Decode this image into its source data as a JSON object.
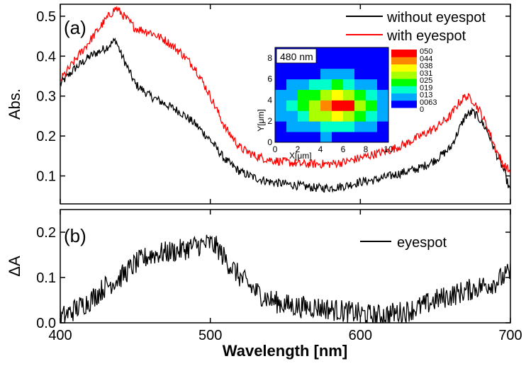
{
  "chart_data": [
    {
      "panel": "(a)",
      "type": "line",
      "xlabel": "Wavelength [nm]",
      "ylabel": "Abs.",
      "xlim": [
        400,
        700
      ],
      "ylim": [
        0.03,
        0.53
      ],
      "xticks": [
        400,
        500,
        600,
        700
      ],
      "yticks": [
        0.1,
        0.2,
        0.3,
        0.4,
        0.5
      ],
      "ytick_labels": [
        "0.1",
        "0.2",
        "0.3",
        "0.4",
        "0.5"
      ],
      "legend_position": "top-right",
      "series": [
        {
          "name": "without eyespot",
          "color": "#000000",
          "x": [
            400,
            410,
            420,
            430,
            437,
            440,
            445,
            450,
            460,
            470,
            480,
            490,
            500,
            510,
            520,
            530,
            540,
            550,
            560,
            570,
            580,
            590,
            600,
            610,
            620,
            630,
            640,
            650,
            660,
            665,
            670,
            675,
            680,
            685,
            690,
            695,
            700
          ],
          "y": [
            0.33,
            0.37,
            0.4,
            0.42,
            0.44,
            0.41,
            0.37,
            0.33,
            0.3,
            0.28,
            0.26,
            0.23,
            0.19,
            0.14,
            0.11,
            0.095,
            0.085,
            0.08,
            0.075,
            0.07,
            0.07,
            0.075,
            0.085,
            0.09,
            0.1,
            0.11,
            0.12,
            0.14,
            0.17,
            0.21,
            0.25,
            0.26,
            0.24,
            0.21,
            0.16,
            0.12,
            0.06
          ]
        },
        {
          "name": "with eyespot",
          "color": "#ff0000",
          "x": [
            400,
            410,
            420,
            430,
            437,
            440,
            445,
            450,
            460,
            470,
            480,
            490,
            500,
            510,
            520,
            530,
            540,
            550,
            560,
            570,
            580,
            590,
            600,
            610,
            620,
            630,
            640,
            650,
            660,
            665,
            670,
            675,
            680,
            685,
            690,
            695,
            700
          ],
          "y": [
            0.34,
            0.39,
            0.44,
            0.49,
            0.52,
            0.51,
            0.49,
            0.47,
            0.46,
            0.44,
            0.41,
            0.37,
            0.3,
            0.22,
            0.17,
            0.15,
            0.14,
            0.135,
            0.13,
            0.13,
            0.13,
            0.135,
            0.145,
            0.155,
            0.165,
            0.18,
            0.2,
            0.22,
            0.25,
            0.28,
            0.3,
            0.29,
            0.26,
            0.22,
            0.17,
            0.13,
            0.11
          ]
        }
      ],
      "inset": {
        "type": "heatmap",
        "label": "480 nm",
        "xlabel": "X[μm]",
        "ylabel": "Y[μm]",
        "xlim": [
          0,
          10
        ],
        "ylim": [
          0,
          9
        ],
        "xticks": [
          0,
          2,
          4,
          6,
          8,
          10
        ],
        "yticks": [
          0,
          2,
          4,
          6,
          8
        ],
        "colorbar_labels": [
          "050",
          "044",
          "038",
          "031",
          "025",
          "019",
          "013",
          "0063",
          "0"
        ],
        "colors": [
          "#0000ff",
          "#00aaff",
          "#00ffcc",
          "#00ff00",
          "#aaff00",
          "#ffff00",
          "#ff8800",
          "#ff0000"
        ]
      }
    },
    {
      "panel": "(b)",
      "type": "line",
      "xlabel": "Wavelength [nm]",
      "ylabel": "ΔA",
      "xlim": [
        400,
        700
      ],
      "ylim": [
        0.0,
        0.25
      ],
      "xticks": [
        400,
        500,
        600,
        700
      ],
      "xtick_labels": [
        "400",
        "500",
        "600",
        "700"
      ],
      "yticks": [
        0.0,
        0.1,
        0.2
      ],
      "ytick_labels": [
        "0.0",
        "0.1",
        "0.2"
      ],
      "legend_position": "top-right",
      "series": [
        {
          "name": "eyespot",
          "color": "#000000",
          "x": [
            400,
            410,
            420,
            430,
            440,
            450,
            460,
            470,
            480,
            490,
            500,
            505,
            510,
            520,
            530,
            540,
            550,
            560,
            570,
            580,
            590,
            600,
            610,
            620,
            630,
            640,
            650,
            660,
            670,
            680,
            690,
            700
          ],
          "y": [
            0.01,
            0.03,
            0.05,
            0.08,
            0.1,
            0.13,
            0.15,
            0.155,
            0.16,
            0.17,
            0.175,
            0.165,
            0.14,
            0.1,
            0.07,
            0.05,
            0.04,
            0.035,
            0.035,
            0.03,
            0.025,
            0.02,
            0.015,
            0.02,
            0.025,
            0.035,
            0.05,
            0.06,
            0.07,
            0.08,
            0.09,
            0.11
          ]
        }
      ]
    }
  ]
}
